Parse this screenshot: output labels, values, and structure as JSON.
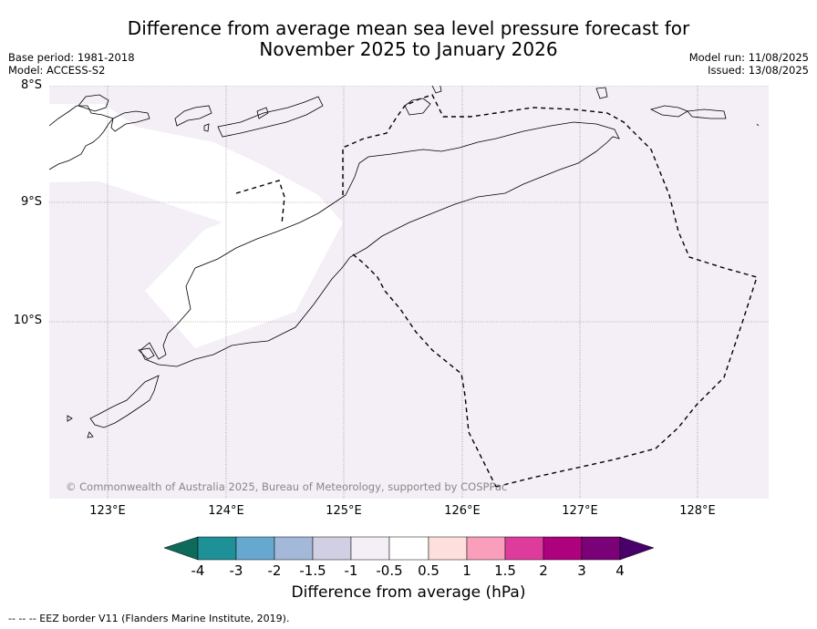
{
  "title": {
    "line1": "Difference from average mean sea level pressure forecast for",
    "line2": "November 2025 to January 2026"
  },
  "meta_left": {
    "base_period": "Base period: 1981-2018",
    "model": "Model: ACCESS-S2"
  },
  "meta_right": {
    "model_run": "Model run: 11/08/2025",
    "issued": "Issued: 13/08/2025"
  },
  "map": {
    "latitudes": [
      "8°S",
      "9°S",
      "10°S"
    ],
    "longitudes": [
      "123°E",
      "124°E",
      "125°E",
      "126°E",
      "127°E",
      "128°E"
    ],
    "copyright": "© Commonwealth of Australia 2025, Bureau of Meteorology, supported by COSPPac",
    "background_color": "#f4eef6",
    "near_zero_color": "#ffffff"
  },
  "colorbar": {
    "title": "Difference from average (hPa)",
    "tick_labels": [
      "-4",
      "-3",
      "-2",
      "-1.5",
      "-1",
      "-0.5",
      "0.5",
      "1",
      "1.5",
      "2",
      "3",
      "4"
    ],
    "colors": [
      "#0e6b5c",
      "#1d9098",
      "#66a8cf",
      "#a4b8da",
      "#d0cfe3",
      "#f4eef6",
      "#ffffff",
      "#fde0dd",
      "#f99fbc",
      "#dd3c9c",
      "#ad017e",
      "#7a0177",
      "#49006a"
    ]
  },
  "footer": {
    "legend_text": "-- -- -- EEZ border V11 (Flanders Marine Institute, 2019)."
  }
}
